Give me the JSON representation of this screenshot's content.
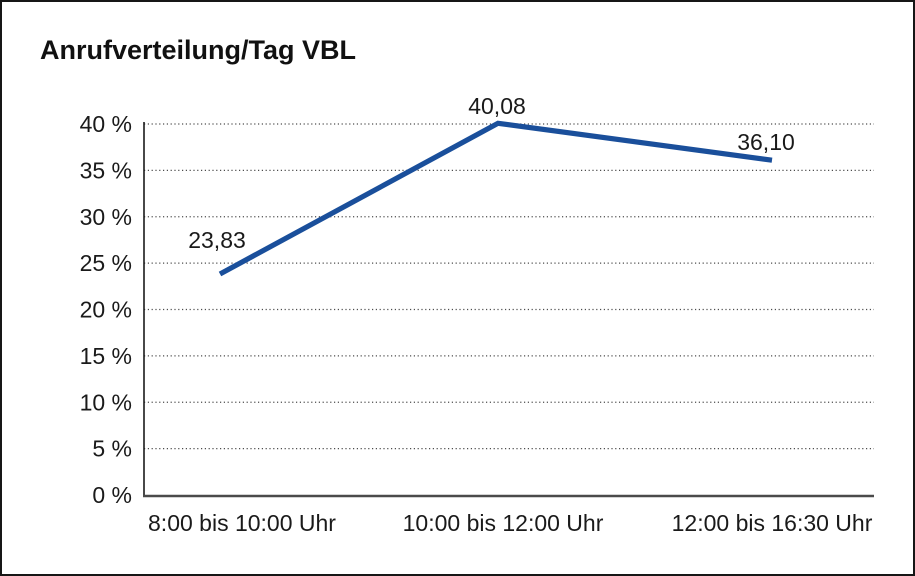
{
  "chart_data": {
    "type": "line",
    "title": "Anrufverteilung/Tag VBL",
    "categories": [
      "8:00 bis 10:00 Uhr",
      "10:00 bis 12:00 Uhr",
      "12:00 bis 16:30 Uhr"
    ],
    "values": [
      23.83,
      40.08,
      36.1
    ],
    "data_labels": [
      "23,83",
      "40,08",
      "36,10"
    ],
    "y_ticks": [
      0,
      5,
      10,
      15,
      20,
      25,
      30,
      35,
      40
    ],
    "y_tick_labels": [
      "0 %",
      "5 %",
      "10 %",
      "15 %",
      "20 %",
      "25 %",
      "30 %",
      "35 %",
      "40 %"
    ],
    "ylim": [
      0,
      40
    ],
    "xlabel": "",
    "ylabel": "",
    "legend": "none",
    "grid": "horizontal-dotted",
    "colors": {
      "line": "#1a4f9b",
      "y_axis": "#1a1a1a",
      "x_axis": "#4a4a4a",
      "gridline": "#4d4d4d",
      "text": "#1a1a1a",
      "background": "#ffffff",
      "frame_border": "#161616"
    }
  }
}
